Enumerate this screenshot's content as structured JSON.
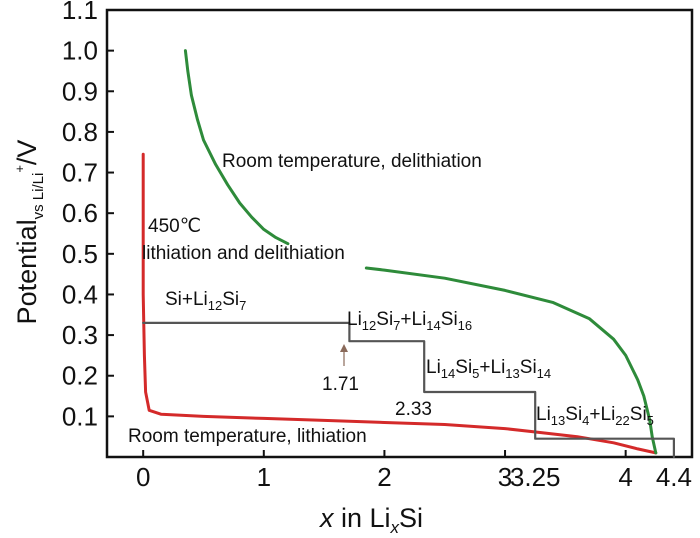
{
  "chart_data": {
    "type": "line",
    "title": "",
    "xlim": [
      -0.3,
      4.55
    ],
    "ylim": [
      0.0,
      1.1
    ],
    "x_ticks": [
      0,
      1,
      2,
      3,
      4
    ],
    "y_ticks": [
      0.1,
      0.2,
      0.3,
      0.4,
      0.5,
      0.6,
      0.7,
      0.8,
      0.9,
      1.0,
      1.1
    ],
    "y_tick_labels": [
      "0.1",
      "0.2",
      "0.3",
      "0.4",
      "0.5",
      "0.6",
      "0.7",
      "0.8",
      "0.9",
      "1.0",
      "1.1"
    ],
    "x_tick_labels": [
      "0",
      "1",
      "2",
      "3",
      "4"
    ],
    "extra_x_labels": [
      {
        "text": "3.25",
        "x": 3.25
      },
      {
        "text": "4.4",
        "x": 4.4
      }
    ],
    "xlabel": {
      "pre": "x",
      "mid": " in Li",
      "sub": "x",
      "post": "Si"
    },
    "ylabel": {
      "main": "Potential",
      "sub": "vs Li/Li",
      "sup": "+",
      "post": "/V"
    },
    "grid": false,
    "series": [
      {
        "color": "#d42a2a",
        "x": [
          0.0,
          0.0,
          0.0,
          0.01,
          0.02,
          0.05,
          0.15,
          0.5,
          1.0,
          1.5,
          2.0,
          2.5,
          3.0,
          3.3,
          3.6,
          3.9,
          4.1,
          4.25
        ],
        "y": [
          0.745,
          0.6,
          0.4,
          0.25,
          0.16,
          0.115,
          0.105,
          0.1,
          0.095,
          0.09,
          0.085,
          0.08,
          0.07,
          0.06,
          0.05,
          0.035,
          0.02,
          0.01
        ]
      },
      {
        "color": "#2e8b3a",
        "x": [
          0.35,
          0.37,
          0.4,
          0.45,
          0.5,
          0.6,
          0.7,
          0.8,
          0.9,
          1.0,
          1.1,
          1.2
        ],
        "y": [
          1.0,
          0.95,
          0.89,
          0.83,
          0.78,
          0.72,
          0.67,
          0.625,
          0.59,
          0.56,
          0.54,
          0.525
        ]
      },
      {
        "color": "#2e8b3a",
        "x": [
          1.85,
          2.0,
          2.5,
          3.0,
          3.4,
          3.7,
          3.9,
          4.0,
          4.1,
          4.15,
          4.2,
          4.22,
          4.25
        ],
        "y": [
          0.465,
          0.46,
          0.44,
          0.41,
          0.38,
          0.34,
          0.29,
          0.25,
          0.19,
          0.15,
          0.09,
          0.05,
          0.01
        ]
      },
      {
        "color": "#555555",
        "x": [
          0.0,
          1.71,
          1.71,
          2.33,
          2.33,
          3.25,
          3.25,
          4.4,
          4.4
        ],
        "y": [
          0.33,
          0.33,
          0.285,
          0.285,
          0.16,
          0.16,
          0.045,
          0.045,
          0.0
        ]
      }
    ],
    "annotations": {
      "rt_delith": "Room temperature, delithiation",
      "t450": "450℃",
      "lith_delith": "lithiation and delithiation",
      "rt_lith": "Room temperature, lithiation",
      "p171": "1.71",
      "p233": "2.33",
      "phase1": [
        {
          "t": "Si+Li"
        },
        {
          "t": "12",
          "sub": true
        },
        {
          "t": "Si"
        },
        {
          "t": "7",
          "sub": true
        }
      ],
      "phase2": [
        {
          "t": "Li"
        },
        {
          "t": "12",
          "sub": true
        },
        {
          "t": "Si"
        },
        {
          "t": "7",
          "sub": true
        },
        {
          "t": "+Li"
        },
        {
          "t": "14",
          "sub": true
        },
        {
          "t": "Si"
        },
        {
          "t": "16",
          "sub": true
        }
      ],
      "phase3": [
        {
          "t": "Li"
        },
        {
          "t": "14",
          "sub": true
        },
        {
          "t": "Si"
        },
        {
          "t": "5",
          "sub": true
        },
        {
          "t": "+Li"
        },
        {
          "t": "13",
          "sub": true
        },
        {
          "t": "Si"
        },
        {
          "t": "14",
          "sub": true
        }
      ],
      "phase4": [
        {
          "t": "Li"
        },
        {
          "t": "13",
          "sub": true
        },
        {
          "t": "Si"
        },
        {
          "t": "4",
          "sub": true
        },
        {
          "t": "+Li"
        },
        {
          "t": "22",
          "sub": true
        },
        {
          "t": "Si"
        },
        {
          "t": "5",
          "sub": true
        }
      ]
    }
  }
}
